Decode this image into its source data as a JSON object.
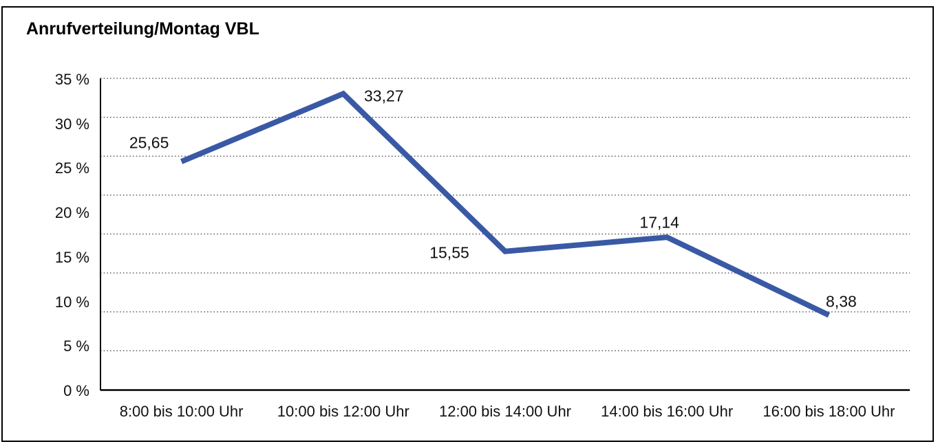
{
  "page": {
    "background": "#ffffff",
    "border_color": "#000000"
  },
  "chart_data": {
    "type": "line",
    "title": "Anrufverteilung/Montag VBL",
    "categories": [
      "8:00 bis 10:00 Uhr",
      "10:00 bis 12:00 Uhr",
      "12:00 bis 14:00 Uhr",
      "14:00 bis 16:00 Uhr",
      "16:00 bis 18:00 Uhr"
    ],
    "values": [
      25.65,
      33.27,
      15.55,
      17.14,
      8.38
    ],
    "point_labels": [
      "25,65",
      "33,27",
      "15,55",
      "17,14",
      "8,38"
    ],
    "point_label_positions": [
      "above-left",
      "right",
      "left",
      "above",
      "above-right"
    ],
    "y_tick_values": [
      35,
      30,
      25,
      20,
      15,
      10,
      5,
      0
    ],
    "y_tick_labels": [
      "35 %",
      "30 %",
      "25 %",
      "20 %",
      "15 %",
      "10 %",
      "5 %",
      "0 %"
    ],
    "ylim": [
      0,
      35
    ],
    "xlabel": "",
    "ylabel": "",
    "legend": "none",
    "grid": {
      "horizontal": "dotted",
      "line_count": 9
    },
    "line_color": "#3A59A5",
    "axis_color": "#000000",
    "gridline_color": "#3a3a3a",
    "decimal_separator": ","
  }
}
